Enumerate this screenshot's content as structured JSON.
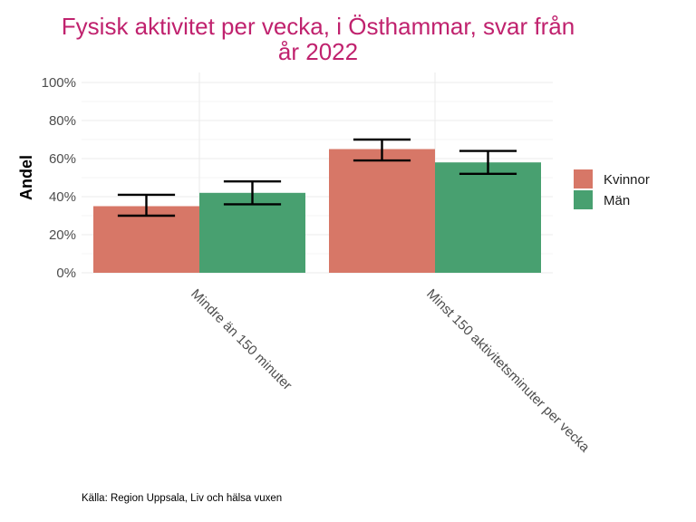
{
  "chart_data": {
    "type": "bar",
    "title": "Fysisk aktivitet per vecka, i Östhammar, svar från år 2022",
    "title_lines": [
      "Fysisk aktivitet per vecka, i Östhammar, svar från",
      "år 2022"
    ],
    "xlabel": "",
    "ylabel": "Andel",
    "ylim": [
      0,
      100
    ],
    "y_ticks": [
      0,
      20,
      40,
      60,
      80,
      100
    ],
    "y_tick_labels": [
      "0%",
      "20%",
      "40%",
      "60%",
      "80%",
      "100%"
    ],
    "categories": [
      "Mindre än 150 minuter",
      "Minst 150 aktivitetsminuter per vecka"
    ],
    "series": [
      {
        "name": "Kvinnor",
        "color": "#d77767",
        "values": [
          35,
          65
        ],
        "error_low": [
          30,
          59
        ],
        "error_high": [
          41,
          70
        ]
      },
      {
        "name": "Män",
        "color": "#48a070",
        "values": [
          42,
          58
        ],
        "error_low": [
          36,
          52
        ],
        "error_high": [
          48,
          64
        ]
      }
    ],
    "legend_position": "right",
    "grid": true,
    "caption": "Källa: Region Uppsala, Liv och hälsa vuxen"
  }
}
